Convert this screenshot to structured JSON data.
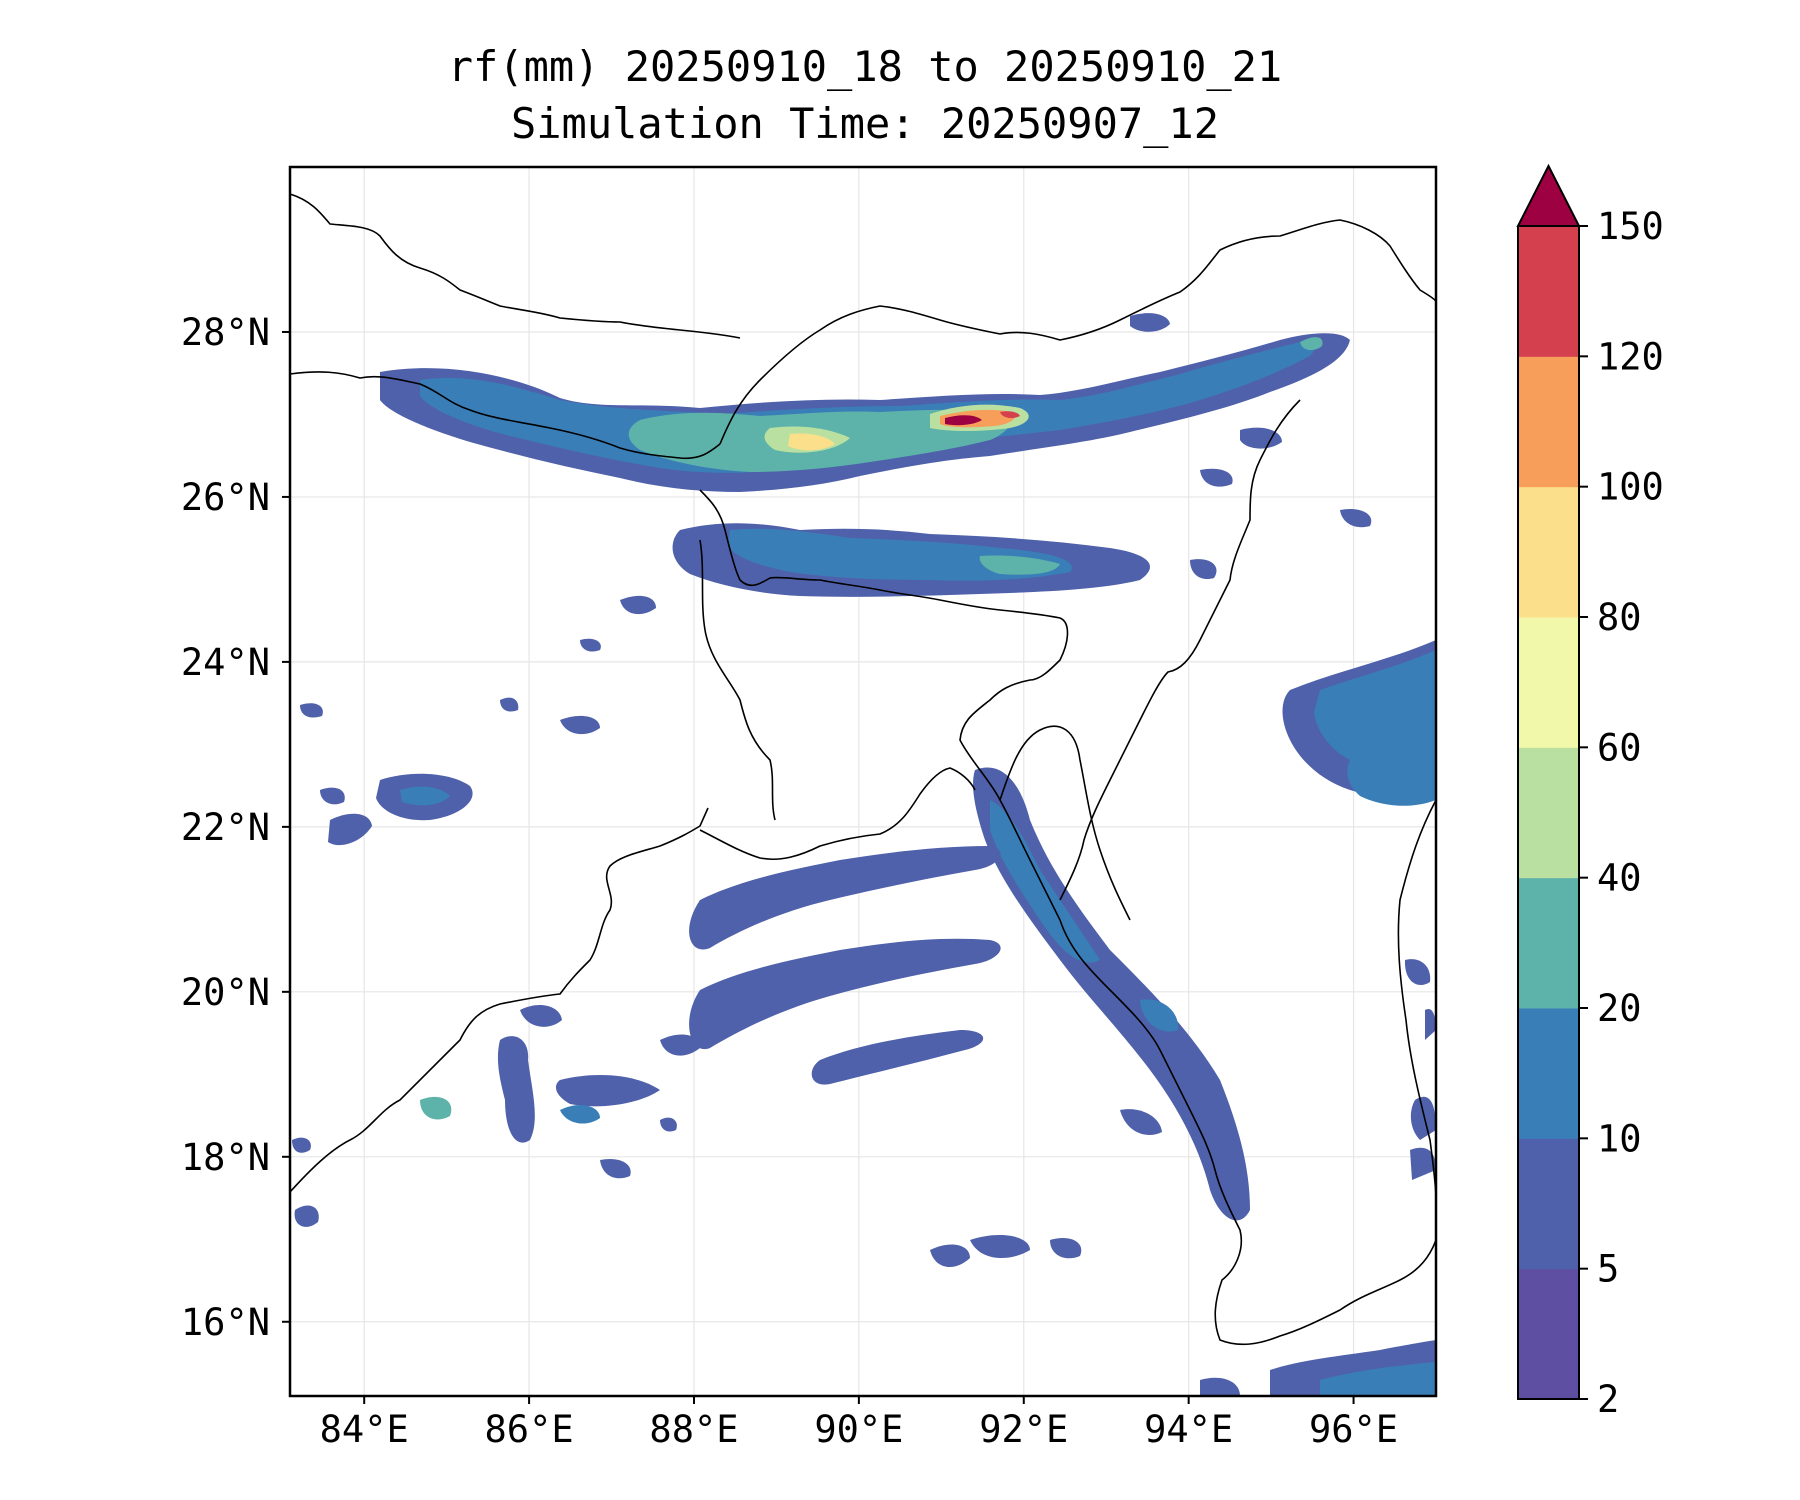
{
  "title": {
    "line1": "rf(mm) 20250910_18 to 20250910_21",
    "line2": "Simulation Time: 20250907_12"
  },
  "axes": {
    "lon_labels": [
      "84°E",
      "86°E",
      "88°E",
      "90°E",
      "92°E",
      "94°E",
      "96°E"
    ],
    "lat_labels": [
      "16°N",
      "18°N",
      "20°N",
      "22°N",
      "24°N",
      "26°N",
      "28°N"
    ],
    "lon_range": [
      83.1,
      97.0
    ],
    "lat_range": [
      15.1,
      30.0
    ],
    "grid": true
  },
  "colorbar": {
    "levels": [
      "2",
      "5",
      "10",
      "20",
      "40",
      "60",
      "80",
      "100",
      "120",
      "150"
    ],
    "colors": [
      "#5e4fa2",
      "#4f61aa",
      "#3a7eb8",
      "#5db3a9",
      "#b9e0a1",
      "#f2f8aa",
      "#fbdf8b",
      "#f79e5b",
      "#d5404e",
      "#9e0142"
    ],
    "extend": "max",
    "extend_color": "#9e0142"
  },
  "legend_placement": "right",
  "colors": {
    "frame": "#000000",
    "grid": "#e6e6e6",
    "coastline": "#000000"
  }
}
